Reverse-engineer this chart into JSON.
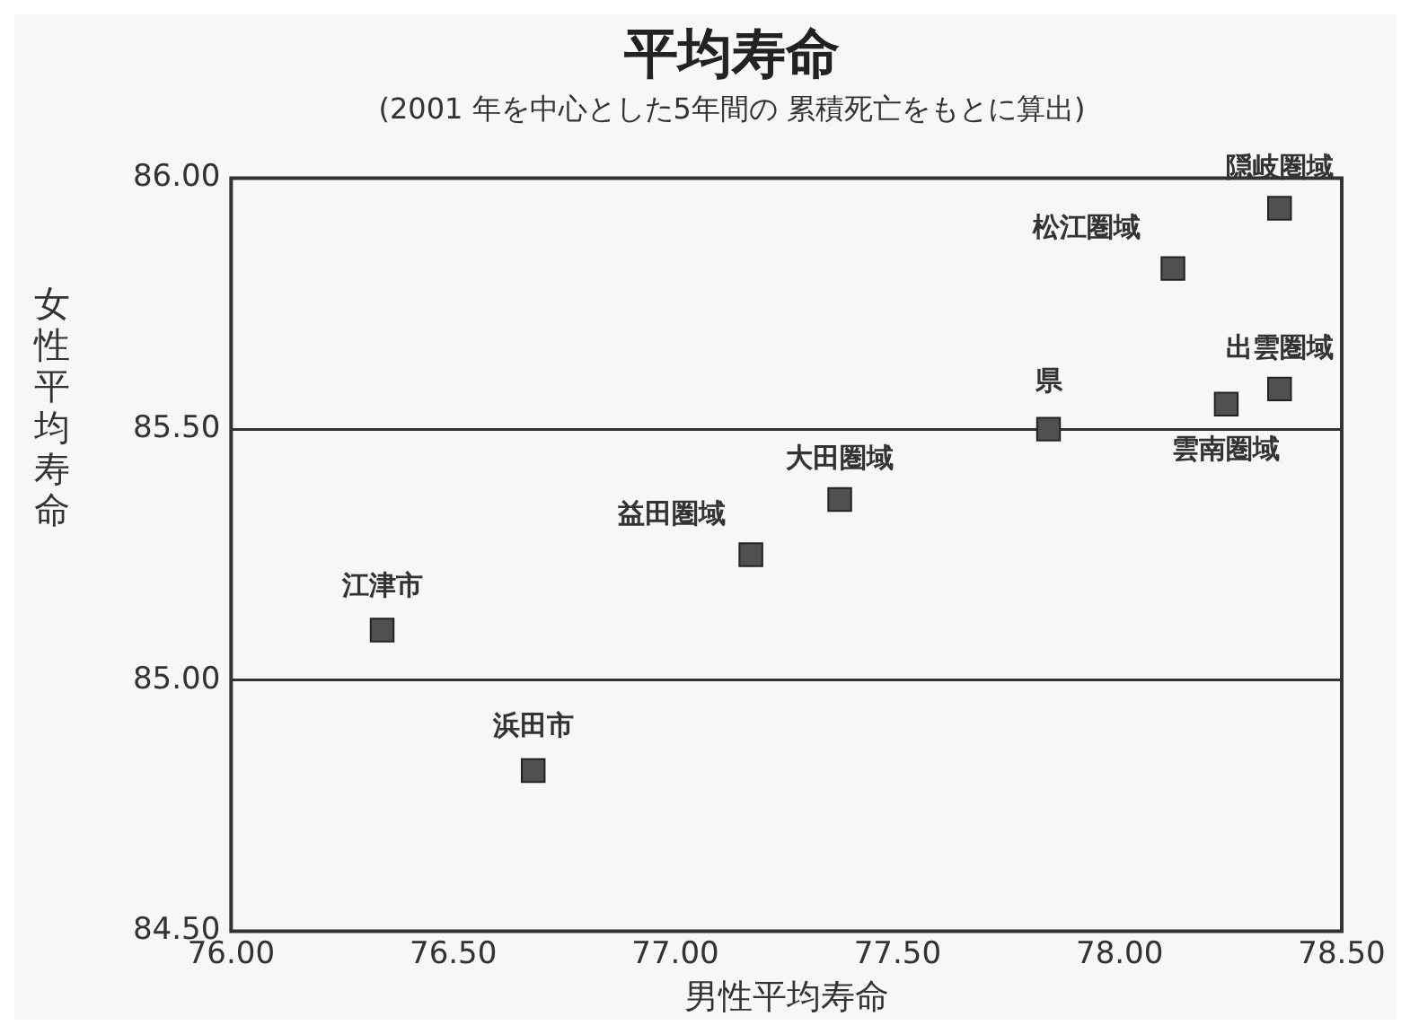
{
  "chart_data": {
    "type": "scatter",
    "title": "平均寿命",
    "subtitle": "(2001 年を中心とした5年間の 累積死亡をもとに算出)",
    "xlabel": "男性平均寿命",
    "ylabel": "女性平均寿命",
    "x": [
      78.36,
      78.12,
      78.36,
      78.24,
      77.84,
      77.37,
      77.17,
      76.34,
      76.68
    ],
    "series": [
      {
        "color": "#505050",
        "values": [
          85.94,
          85.82,
          85.58,
          85.55,
          85.5,
          85.36,
          85.25,
          85.1,
          84.82
        ]
      }
    ],
    "marker": "square",
    "legend": false,
    "grid": "y",
    "xlim": [
      76,
      78.5
    ],
    "xticks": [
      {
        "value": 76,
        "label": "76.00"
      },
      {
        "value": 76.5,
        "label": "76.50"
      },
      {
        "value": 77,
        "label": "77.00"
      },
      {
        "value": 77.5,
        "label": "77.50"
      },
      {
        "value": 78,
        "label": "78.00"
      },
      {
        "value": 78.5,
        "label": "78.50"
      }
    ],
    "ylim": [
      84.5,
      86
    ],
    "yticks": [
      {
        "value": 84.5,
        "label": "84.50"
      },
      {
        "value": 85,
        "label": "85.00"
      },
      {
        "value": 85.5,
        "label": "85.50"
      },
      {
        "value": 86,
        "label": "86.00"
      }
    ],
    "annotations": [
      {
        "text": "隠岐圏域",
        "x": 78.36,
        "y": 85.94
      },
      {
        "text": "松江圏域",
        "x": 78.12,
        "y": 85.82
      },
      {
        "text": "出雲圏域",
        "x": 78.36,
        "y": 85.58
      },
      {
        "text": "雲南圏域",
        "x": 78.24,
        "y": 85.55
      },
      {
        "text": "県",
        "x": 77.84,
        "y": 85.5
      },
      {
        "text": "大田圏域",
        "x": 77.37,
        "y": 85.36
      },
      {
        "text": "益田圏域",
        "x": 77.17,
        "y": 85.25
      },
      {
        "text": "江津市",
        "x": 76.34,
        "y": 85.1
      },
      {
        "text": "浜田市",
        "x": 76.68,
        "y": 84.82
      }
    ]
  }
}
